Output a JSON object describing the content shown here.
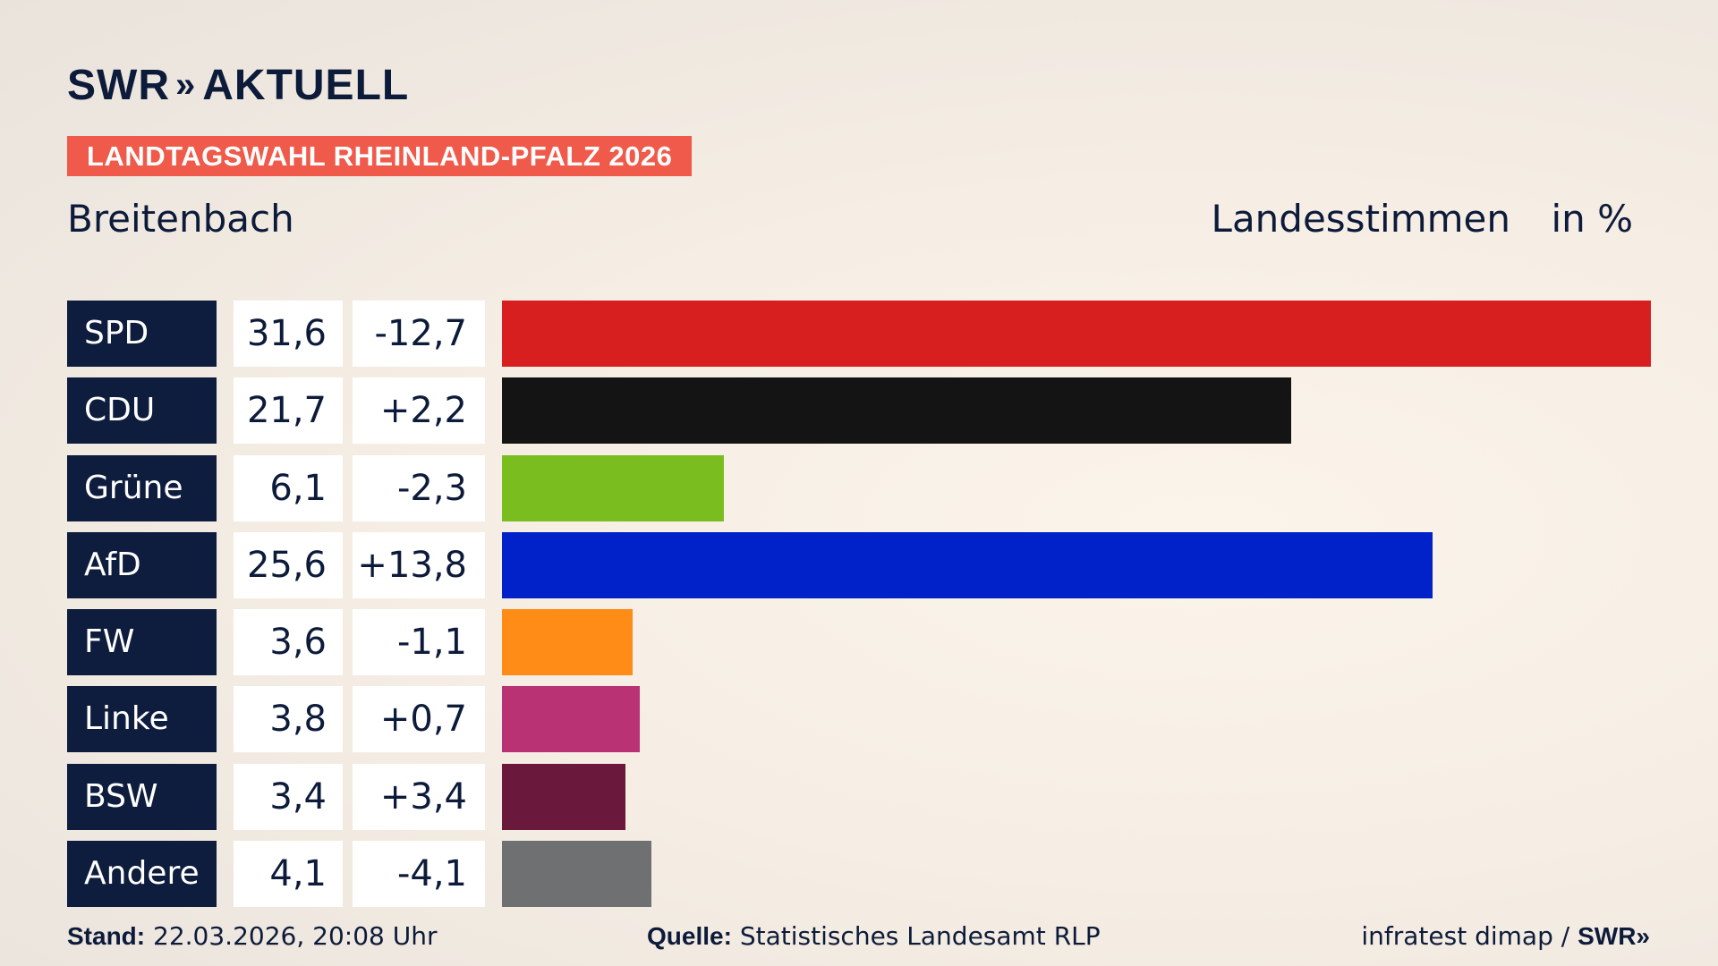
{
  "header": {
    "logo_text": "SWR",
    "logo_chevrons": "»",
    "logo_text2": "AKTUELL",
    "badge": "LANDTAGSWAHL RHEINLAND-PFALZ 2026",
    "region": "Breitenbach",
    "measure": "Landesstimmen",
    "unit": "in %"
  },
  "chart_data": {
    "type": "bar",
    "orientation": "horizontal",
    "categories": [
      "SPD",
      "CDU",
      "Grüne",
      "AfD",
      "FW",
      "Linke",
      "BSW",
      "Andere"
    ],
    "values": [
      31.6,
      21.7,
      6.1,
      25.6,
      3.6,
      3.8,
      3.4,
      4.1
    ],
    "value_labels": [
      "31,6",
      "21,7",
      "6,1",
      "25,6",
      "3,6",
      "3,8",
      "3,4",
      "4,1"
    ],
    "diff_labels": [
      "-12,7",
      "+2,2",
      "-2,3",
      "+13,8",
      "-1,1",
      "+0,7",
      "+3,4",
      "-4,1"
    ],
    "colors": [
      "#d71f1f",
      "#141414",
      "#79bd1e",
      "#0022c8",
      "#ff8c16",
      "#b93273",
      "#6b183d",
      "#6f7072"
    ],
    "xlim": [
      0,
      31.6
    ]
  },
  "footer": {
    "stand_label": "Stand:",
    "stand_value": "22.03.2026, 20:08 Uhr",
    "source_label": "Quelle:",
    "source_value": "Statistisches Landesamt RLP",
    "credit": "infratest dimap /",
    "credit_logo": "SWR»"
  }
}
